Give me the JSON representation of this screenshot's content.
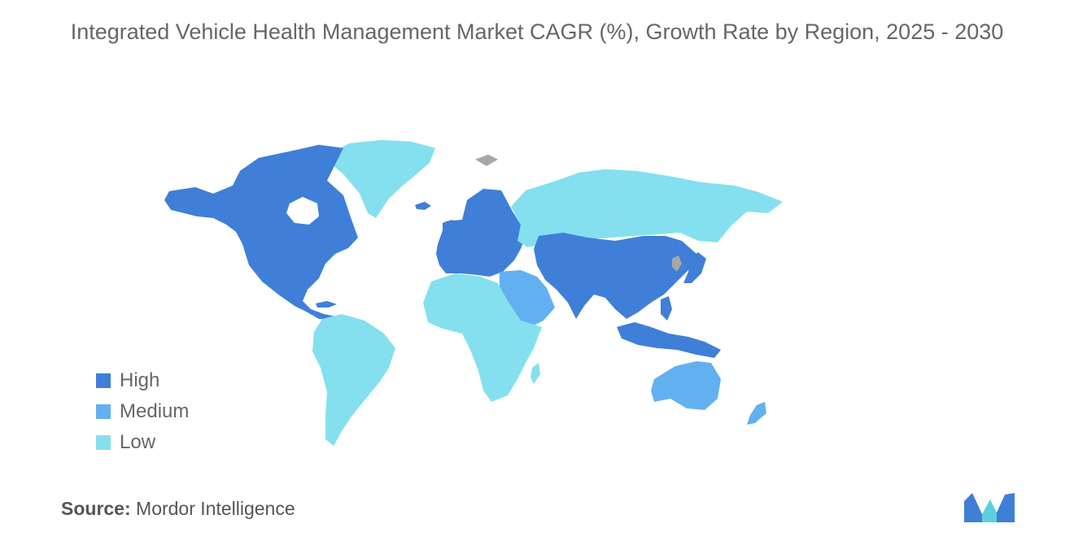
{
  "title": "Integrated Vehicle Health Management Market CAGR (%), Growth Rate by Region, 2025 - 2030",
  "colors": {
    "high": "#3f7fd8",
    "medium": "#63b0f1",
    "low": "#84e0ee",
    "nodata": "#a7a7a7"
  },
  "legend": [
    {
      "label": "High",
      "color": "#3f7fd8"
    },
    {
      "label": "Medium",
      "color": "#63b0f1"
    },
    {
      "label": "Low",
      "color": "#84e0ee"
    }
  ],
  "regions": {
    "north_america": "High",
    "europe": "High",
    "asia_pacific": "High",
    "middle_east": "Medium",
    "australia_new_zealand": "Medium",
    "russia": "Low",
    "greenland": "Low",
    "south_america": "Low",
    "africa": "Low"
  },
  "source": {
    "prefix": "Source:",
    "text": "Mordor Intelligence"
  }
}
